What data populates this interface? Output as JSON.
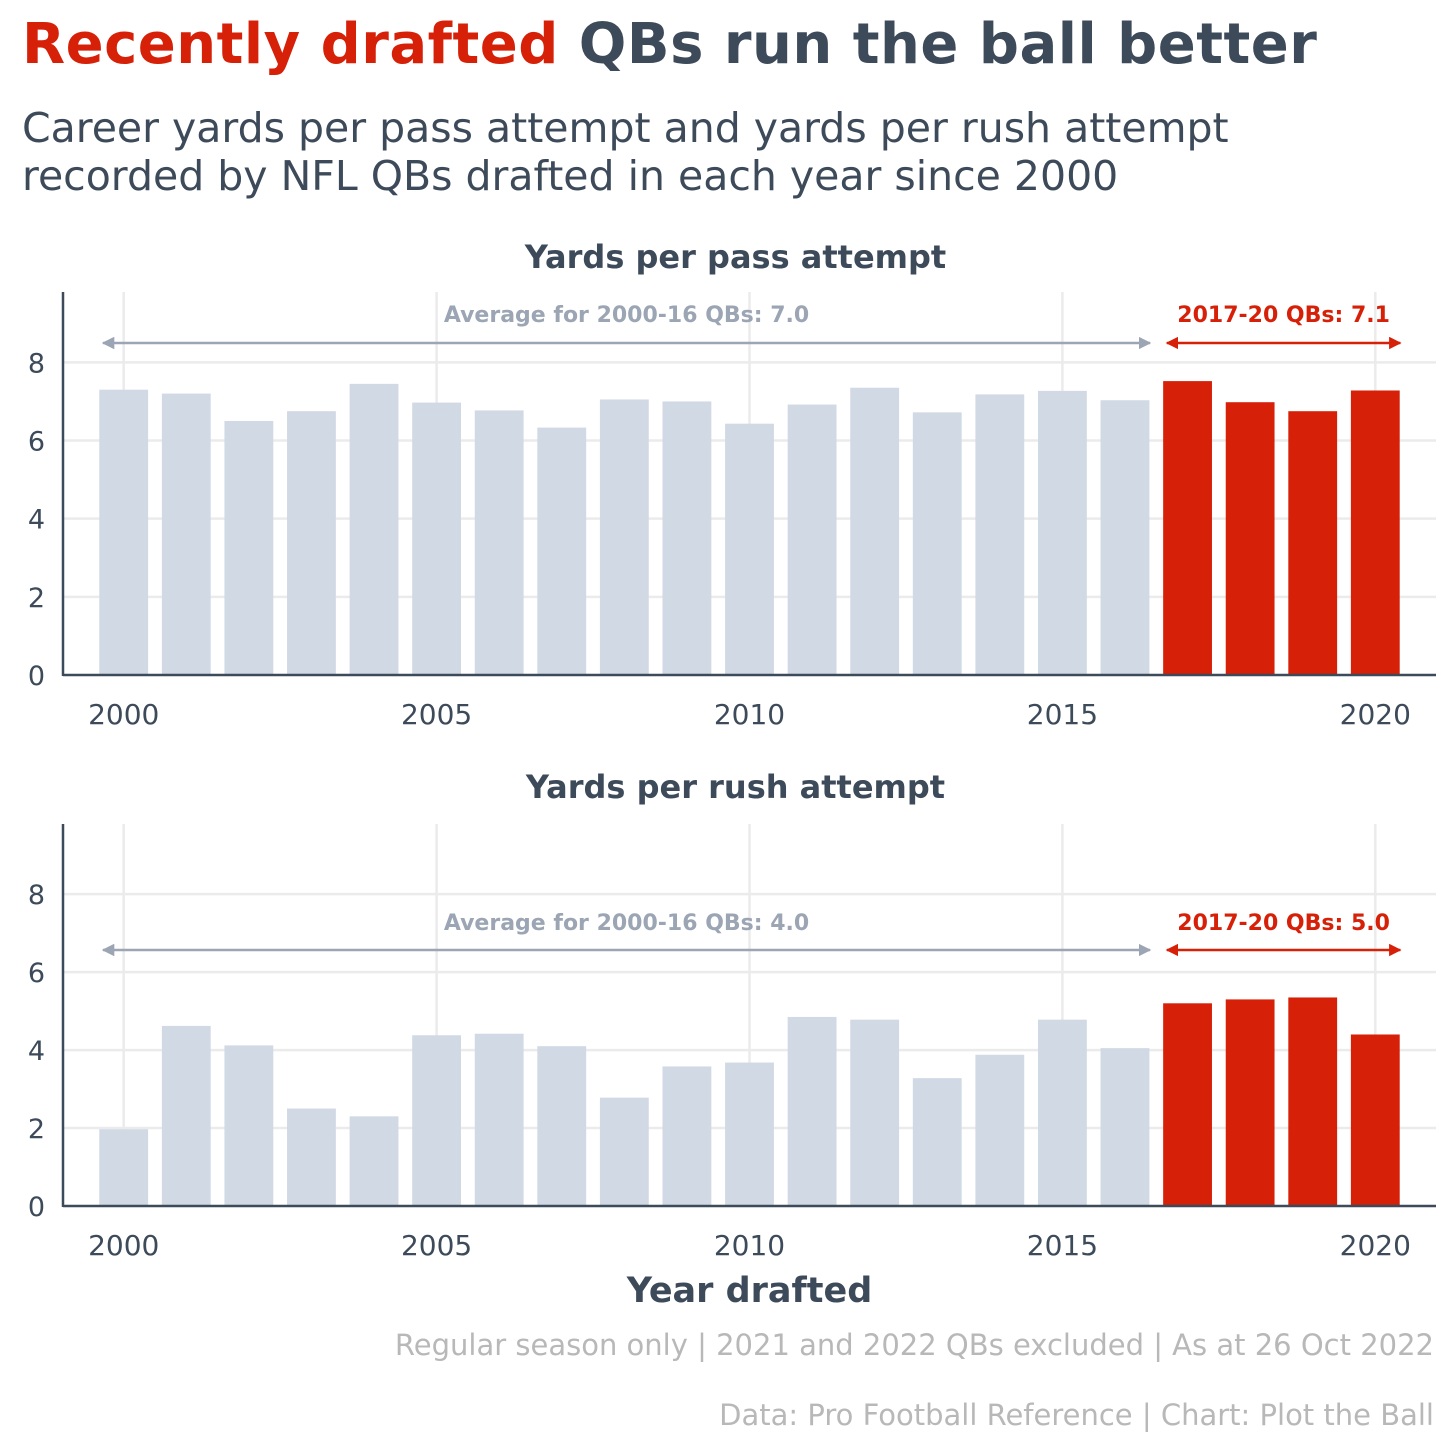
{
  "title": {
    "highlight": "Recently drafted",
    "rest": " QBs run the ball better"
  },
  "subtitle": {
    "line1": "Career yards per pass attempt and yards per rush attempt",
    "line2": "recorded by NFL QBs drafted in each year since 2000"
  },
  "colors": {
    "recent": "#d62008",
    "older": "#d0d9e4",
    "text": "#3d4a5a",
    "annotation_grey": "#9ba5b3",
    "grid": "#ebebeb"
  },
  "footer": {
    "note": "Regular season only | 2021 and 2022 QBs excluded | As at 26 Oct 2022",
    "credit": "Data: Pro Football Reference | Chart: Plot the Ball"
  },
  "chart_data": [
    {
      "type": "bar",
      "title": "Yards per pass attempt",
      "xlabel": "",
      "ylabel": "",
      "x": [
        2000,
        2001,
        2002,
        2003,
        2004,
        2005,
        2006,
        2007,
        2008,
        2009,
        2010,
        2011,
        2012,
        2013,
        2014,
        2015,
        2016,
        2017,
        2018,
        2019,
        2020
      ],
      "values": [
        7.3,
        7.2,
        6.5,
        6.75,
        7.45,
        6.97,
        6.77,
        6.33,
        7.05,
        7.0,
        6.43,
        6.92,
        7.35,
        6.72,
        7.18,
        7.27,
        7.03,
        7.52,
        6.98,
        6.75,
        7.28
      ],
      "highlight_from": 2017,
      "ylim": [
        0,
        9.8
      ],
      "yticks": [
        0,
        2,
        4,
        6,
        8
      ],
      "xticks": [
        2000,
        2005,
        2010,
        2015,
        2020
      ],
      "annotations": [
        {
          "text": "Average for 2000-16 QBs: 7.0",
          "from": 2000,
          "to": 2016,
          "style": "grey"
        },
        {
          "text": "2017-20 QBs: 7.1",
          "from": 2017,
          "to": 2020,
          "style": "red"
        }
      ]
    },
    {
      "type": "bar",
      "title": "Yards per rush attempt",
      "xlabel": "Year drafted",
      "ylabel": "",
      "x": [
        2000,
        2001,
        2002,
        2003,
        2004,
        2005,
        2006,
        2007,
        2008,
        2009,
        2010,
        2011,
        2012,
        2013,
        2014,
        2015,
        2016,
        2017,
        2018,
        2019,
        2020
      ],
      "values": [
        1.97,
        4.62,
        4.12,
        2.5,
        2.3,
        4.38,
        4.42,
        4.1,
        2.78,
        3.58,
        3.68,
        4.85,
        4.78,
        3.28,
        3.88,
        4.78,
        4.05,
        5.2,
        5.3,
        5.35,
        4.4
      ],
      "highlight_from": 2017,
      "ylim": [
        0,
        9.8
      ],
      "yticks": [
        0,
        2,
        4,
        6,
        8
      ],
      "xticks": [
        2000,
        2005,
        2010,
        2015,
        2020
      ],
      "annotations": [
        {
          "text": "Average for 2000-16 QBs: 4.0",
          "from": 2000,
          "to": 2016,
          "style": "grey"
        },
        {
          "text": "2017-20 QBs: 5.0",
          "from": 2017,
          "to": 2020,
          "style": "red"
        }
      ]
    }
  ]
}
